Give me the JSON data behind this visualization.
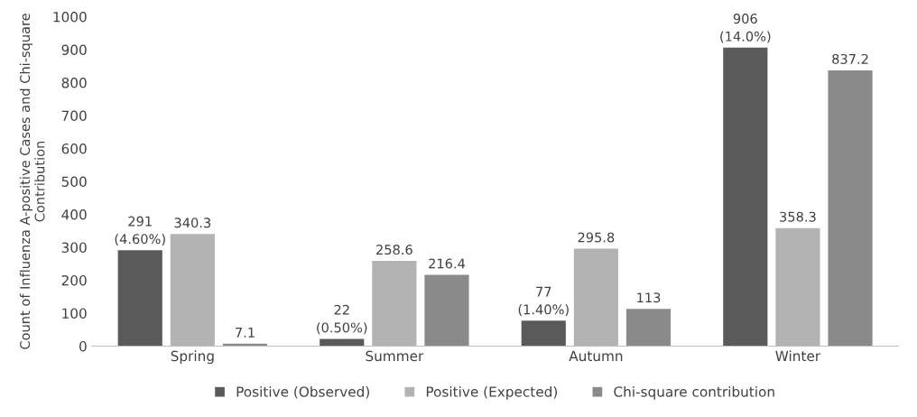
{
  "chart_data": {
    "type": "bar",
    "ylabel": "Count of Influenza A-positive Cases and Chi-square Contribution",
    "categories": [
      "Spring",
      "Summer",
      "Autumn",
      "Winter"
    ],
    "series": [
      {
        "name": "Positive (Observed)",
        "color": "#5a5a5a",
        "values": [
          291,
          22,
          77,
          906
        ],
        "value_labels": [
          "291\n(4.60%)",
          "22\n(0.50%)",
          "77\n(1.40%)",
          "906\n(14.0%)"
        ]
      },
      {
        "name": "Positive (Expected)",
        "color": "#b3b3b3",
        "values": [
          340.3,
          258.6,
          295.8,
          358.3
        ],
        "value_labels": [
          "340.3",
          "258.6",
          "295.8",
          "358.3"
        ]
      },
      {
        "name": "Chi-square contribution",
        "color": "#8a8a8a",
        "values": [
          7.1,
          216.4,
          113,
          837.2
        ],
        "value_labels": [
          "7.1",
          "216.4",
          "113",
          "837.2"
        ]
      }
    ],
    "ylim": [
      0,
      1000
    ],
    "yticks": [
      0,
      100,
      200,
      300,
      400,
      500,
      600,
      700,
      800,
      900,
      1000
    ],
    "grid": false,
    "legend": "bottom"
  }
}
